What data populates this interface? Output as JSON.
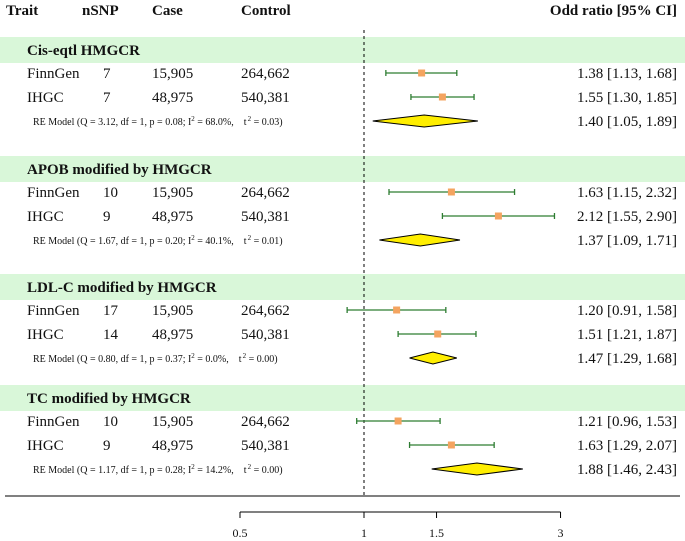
{
  "headers": {
    "trait": "Trait",
    "nsnp": "nSNP",
    "case": "Case",
    "control": "Control",
    "or": "Odd ratio [95% CI]"
  },
  "colors": {
    "band": "#d9f7d9",
    "ci_line": "#2e7d32",
    "point": "#f4a460",
    "diamond_fill": "#ffee00",
    "diamond_stroke": "#000000",
    "axis": "#000000"
  },
  "chart_data": {
    "type": "forest",
    "xlabel": "",
    "scale": "log",
    "xlim": [
      0.5,
      3
    ],
    "x_ticks": [
      0.5,
      1,
      1.5,
      3
    ],
    "x_tick_labels": [
      "0.5",
      "1",
      "1.5",
      "3"
    ],
    "reference_line": 1,
    "groups": [
      {
        "title": "Cis-eqtl HMGCR",
        "rows": [
          {
            "trait": "FinnGen",
            "nsnp": "7",
            "case": "15,905",
            "control": "264,662",
            "or": 1.38,
            "lo": 1.13,
            "hi": 1.68,
            "label": "1.38 [1.13, 1.68]"
          },
          {
            "trait": "IHGC",
            "nsnp": "7",
            "case": "48,975",
            "control": "540,381",
            "or": 1.55,
            "lo": 1.3,
            "hi": 1.85,
            "label": "1.55 [1.30, 1.85]"
          }
        ],
        "re_model": {
          "prefix": "RE Model (Q = 3.12, df = 1, p = 0.08; I",
          "i2": "68.0%,",
          "tau": "0.03)",
          "or": 1.4,
          "lo": 1.05,
          "hi": 1.89,
          "label": "1.40 [1.05, 1.89]"
        }
      },
      {
        "title": "APOB modified by HMGCR",
        "rows": [
          {
            "trait": "FinnGen",
            "nsnp": "10",
            "case": "15,905",
            "control": "264,662",
            "or": 1.63,
            "lo": 1.15,
            "hi": 2.32,
            "label": "1.63 [1.15, 2.32]"
          },
          {
            "trait": "IHGC",
            "nsnp": "9",
            "case": "48,975",
            "control": "540,381",
            "or": 2.12,
            "lo": 1.55,
            "hi": 2.9,
            "label": "2.12 [1.55, 2.90]"
          }
        ],
        "re_model": {
          "prefix": "RE Model (Q = 1.67, df = 1, p = 0.20; I",
          "i2": "40.1%,",
          "tau": "0.01)",
          "or": 1.37,
          "lo": 1.09,
          "hi": 1.71,
          "label": "1.37 [1.09, 1.71]"
        }
      },
      {
        "title": "LDL-C modified by HMGCR",
        "rows": [
          {
            "trait": "FinnGen",
            "nsnp": "17",
            "case": "15,905",
            "control": "264,662",
            "or": 1.2,
            "lo": 0.91,
            "hi": 1.58,
            "label": "1.20 [0.91, 1.58]"
          },
          {
            "trait": "IHGC",
            "nsnp": "14",
            "case": "48,975",
            "control": "540,381",
            "or": 1.51,
            "lo": 1.21,
            "hi": 1.87,
            "label": "1.51 [1.21, 1.87]"
          }
        ],
        "re_model": {
          "prefix": "RE Model (Q = 0.80, df = 1, p = 0.37; I",
          "i2": "0.0%,",
          "tau": "0.00)",
          "or": 1.47,
          "lo": 1.29,
          "hi": 1.68,
          "label": "1.47 [1.29, 1.68]"
        }
      },
      {
        "title": "TC modified by HMGCR",
        "rows": [
          {
            "trait": "FinnGen",
            "nsnp": "10",
            "case": "15,905",
            "control": "264,662",
            "or": 1.21,
            "lo": 0.96,
            "hi": 1.53,
            "label": "1.21 [0.96, 1.53]"
          },
          {
            "trait": "IHGC",
            "nsnp": "9",
            "case": "48,975",
            "control": "540,381",
            "or": 1.63,
            "lo": 1.29,
            "hi": 2.07,
            "label": "1.63 [1.29, 2.07]"
          }
        ],
        "re_model": {
          "prefix": "RE Model (Q = 1.17, df = 1, p = 0.28; I",
          "i2": "14.2%,",
          "tau": "0.00)",
          "or": 1.88,
          "lo": 1.46,
          "hi": 2.43,
          "label": "1.88 [1.46, 2.43]"
        }
      }
    ]
  }
}
